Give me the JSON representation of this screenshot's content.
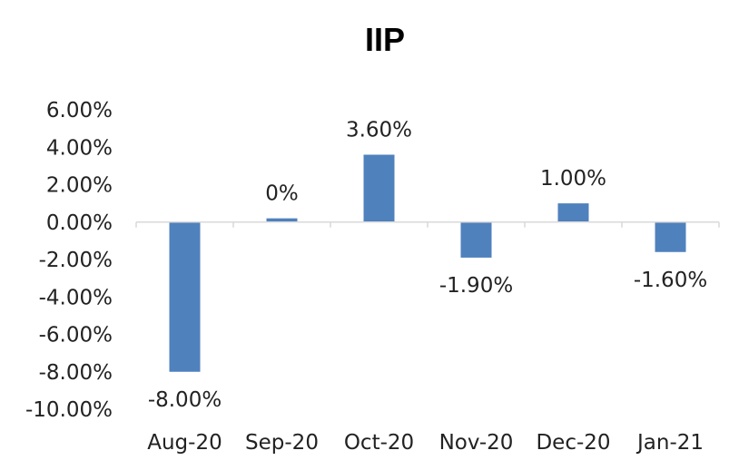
{
  "chart_data": {
    "type": "bar",
    "title": "IIP",
    "categories": [
      "Aug-20",
      "Sep-20",
      "Oct-20",
      "Nov-20",
      "Dec-20",
      "Jan-21"
    ],
    "values": [
      -8.0,
      0.2,
      3.6,
      -1.9,
      1.0,
      -1.6
    ],
    "data_labels": [
      "-8.00%",
      "0%",
      "3.60%",
      "-1.90%",
      "1.00%",
      "-1.60%"
    ],
    "y_ticks": [
      6,
      4,
      2,
      0,
      -2,
      -4,
      -6,
      -8,
      -10
    ],
    "y_tick_labels": [
      "6.00%",
      "4.00%",
      "2.00%",
      "0.00%",
      "-2.00%",
      "-4.00%",
      "-6.00%",
      "-8.00%",
      "-10.00%"
    ],
    "ylim": [
      -10,
      6
    ],
    "grid": false,
    "legend": "none",
    "bar_color": "#4f81bd",
    "axis_color": "#d9d9d9"
  }
}
